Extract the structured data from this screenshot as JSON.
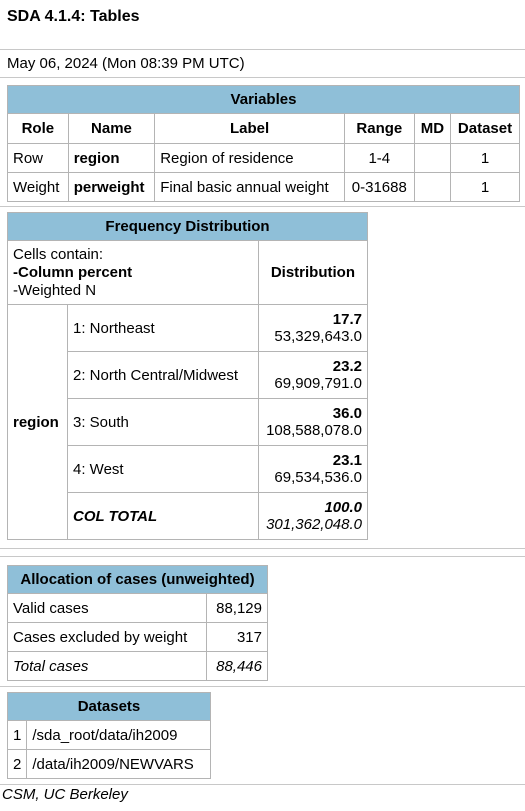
{
  "header": {
    "title": "SDA 4.1.4: Tables"
  },
  "date_line": "May 06, 2024 (Mon 08:39 PM UTC)",
  "variables": {
    "caption": "Variables",
    "columns": [
      "Role",
      "Name",
      "Label",
      "Range",
      "MD",
      "Dataset"
    ],
    "rows": [
      {
        "role": "Row",
        "name": "region",
        "label": "Region of residence",
        "range": "1-4",
        "md": "",
        "dataset": "1"
      },
      {
        "role": "Weight",
        "name": "perweight",
        "label": "Final basic annual weight",
        "range": "0-31688",
        "md": "",
        "dataset": "1"
      }
    ]
  },
  "frequency": {
    "caption": "Frequency Distribution",
    "cells_contain": "Cells contain:",
    "cells_item1": "-Column percent",
    "cells_item2": "-Weighted N",
    "distribution_label": "Distribution",
    "row_variable": "region",
    "rows": [
      {
        "label": "1: Northeast",
        "pct": "17.7",
        "n": "53,329,643.0"
      },
      {
        "label": "2: North Central/Midwest",
        "pct": "23.2",
        "n": "69,909,791.0"
      },
      {
        "label": "3: South",
        "pct": "36.0",
        "n": "108,588,078.0"
      },
      {
        "label": "4: West",
        "pct": "23.1",
        "n": "69,534,536.0"
      }
    ],
    "total": {
      "label": "COL TOTAL",
      "pct": "100.0",
      "n": "301,362,048.0"
    }
  },
  "allocation": {
    "caption": "Allocation of cases (unweighted)",
    "rows": [
      {
        "label": "Valid cases",
        "value": "88,129"
      },
      {
        "label": "Cases excluded by weight",
        "value": "317"
      }
    ],
    "total": {
      "label": "Total cases",
      "value": "88,446"
    }
  },
  "datasets": {
    "caption": "Datasets",
    "rows": [
      {
        "num": "1",
        "path": "/sda_root/data/ih2009"
      },
      {
        "num": "2",
        "path": "/data/ih2009/NEWVARS"
      }
    ]
  },
  "footer": "CSM, UC Berkeley"
}
